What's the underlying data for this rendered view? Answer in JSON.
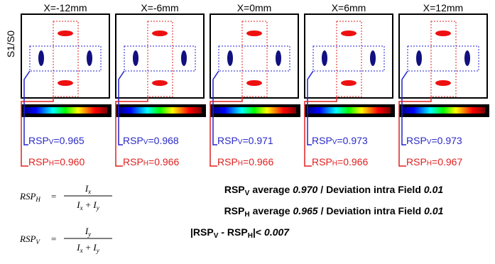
{
  "axis_label": "S1/S0",
  "rsp": "RSP",
  "v": "V",
  "h": "H",
  "equals": "=",
  "panels": [
    {
      "x_label": "X=-12mm",
      "rsp_v": "0.965",
      "rsp_h": "0.960"
    },
    {
      "x_label": "X=-6mm",
      "rsp_v": "0.968",
      "rsp_h": "0.966"
    },
    {
      "x_label": "X=0mm",
      "rsp_v": "0.971",
      "rsp_h": "0.966"
    },
    {
      "x_label": "X=6mm",
      "rsp_v": "0.973",
      "rsp_h": "0.966"
    },
    {
      "x_label": "X=12mm",
      "rsp_v": "0.973",
      "rsp_h": "0.967"
    }
  ],
  "formulas": [
    {
      "symbol": "RSP",
      "sub": "H",
      "numerator": {
        "symbol": "I",
        "sub": "x"
      },
      "denominator": [
        {
          "symbol": "I",
          "sub": "x"
        },
        {
          "symbol": "+"
        },
        {
          "symbol": "I",
          "sub": "y"
        }
      ]
    },
    {
      "symbol": "RSP",
      "sub": "V",
      "numerator": {
        "symbol": "I",
        "sub": "y"
      },
      "denominator": [
        {
          "symbol": "I",
          "sub": "x"
        },
        {
          "symbol": "+"
        },
        {
          "symbol": "I",
          "sub": "y"
        }
      ]
    }
  ],
  "summary": {
    "average": "average",
    "deviation_text": "/ Deviation intra Field",
    "v_average": "0.970",
    "v_deviation": "0.01",
    "h_average": "0.965",
    "h_deviation": "0.01",
    "diff_open": "|RSP",
    "diff_minus": "- RSP",
    "diff_close": "|<",
    "diff_value": "0.007"
  }
}
